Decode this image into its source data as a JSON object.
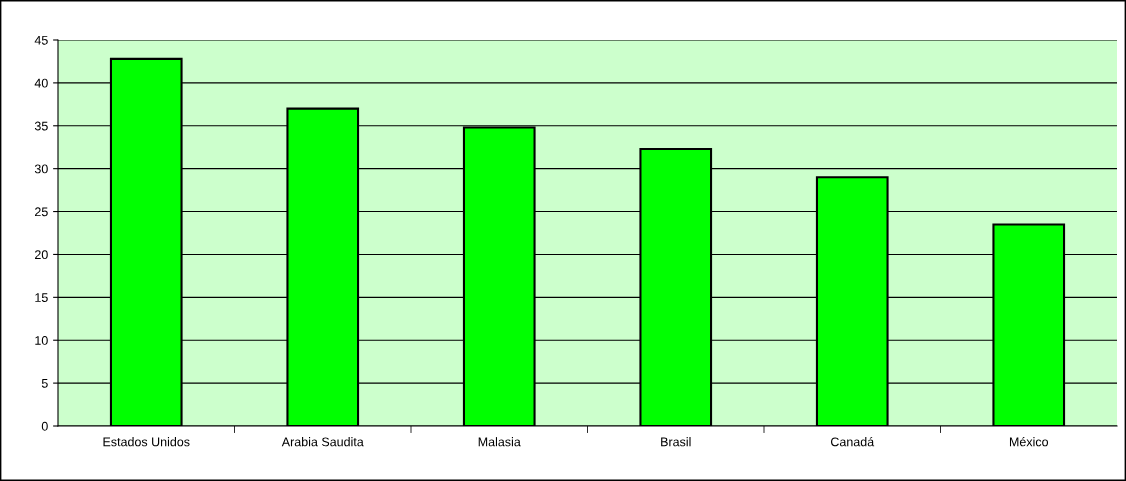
{
  "chart_data": {
    "type": "bar",
    "categories": [
      "Estados Unidos",
      "Arabia Saudita",
      "Malasia",
      "Brasil",
      "Canadá",
      "México"
    ],
    "values": [
      42.8,
      37.0,
      34.8,
      32.3,
      29.0,
      23.5
    ],
    "color": "#00ff00",
    "ylim": [
      0,
      45
    ],
    "yticks": [
      0,
      5,
      10,
      15,
      20,
      25,
      30,
      35,
      40,
      45
    ],
    "grid": "y",
    "legend": false
  }
}
